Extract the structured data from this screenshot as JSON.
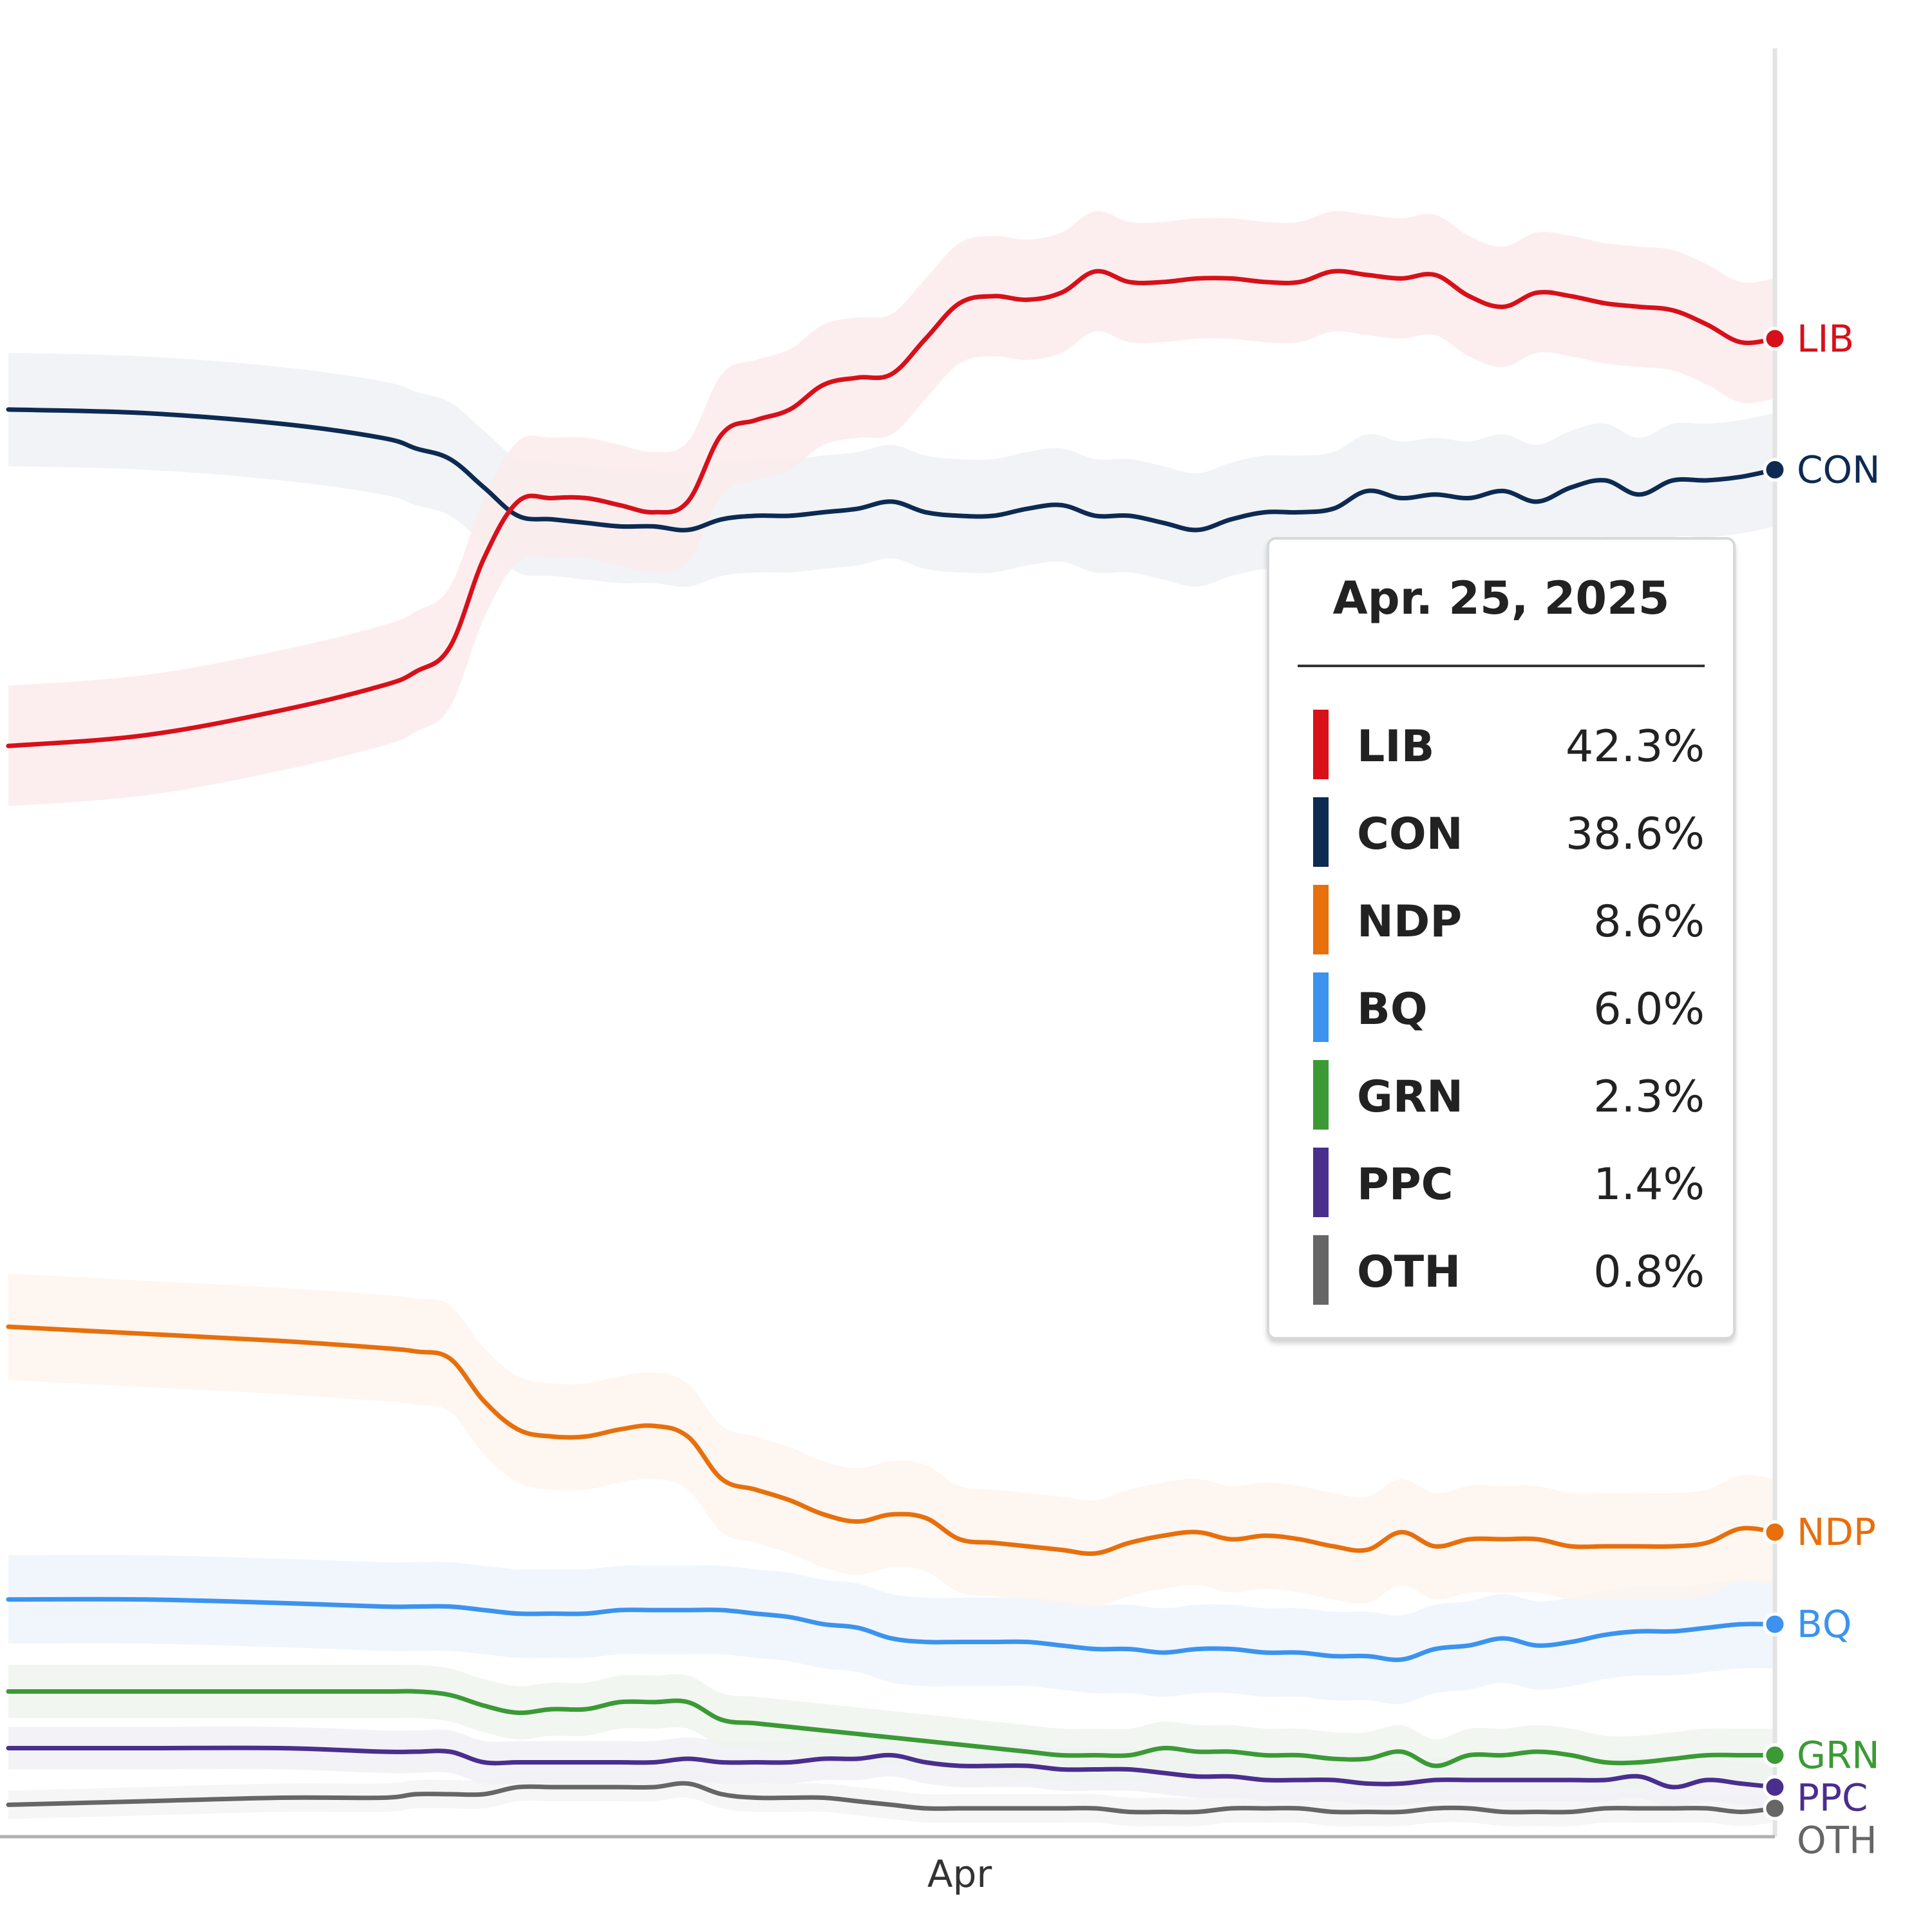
{
  "chart_data": {
    "type": "line",
    "title": "",
    "xlabel": "",
    "ylabel": "",
    "ylim": [
      0,
      50.5
    ],
    "grid": false,
    "legend": "direct labels at right end of lines",
    "x_ticks": [
      {
        "date": "2025-04-01",
        "label": "Apr"
      }
    ],
    "dates": [
      "2025-03-04",
      "2025-03-08",
      "2025-03-12",
      "2025-03-15",
      "2025-03-16",
      "2025-03-17",
      "2025-03-18",
      "2025-03-19",
      "2025-03-20",
      "2025-03-21",
      "2025-03-22",
      "2025-03-23",
      "2025-03-24",
      "2025-03-25",
      "2025-03-26",
      "2025-03-27",
      "2025-03-28",
      "2025-03-29",
      "2025-03-30",
      "2025-03-31",
      "2025-04-01",
      "2025-04-02",
      "2025-04-03",
      "2025-04-04",
      "2025-04-05",
      "2025-04-06",
      "2025-04-07",
      "2025-04-08",
      "2025-04-09",
      "2025-04-10",
      "2025-04-11",
      "2025-04-12",
      "2025-04-13",
      "2025-04-14",
      "2025-04-15",
      "2025-04-16",
      "2025-04-17",
      "2025-04-18",
      "2025-04-19",
      "2025-04-20",
      "2025-04-21",
      "2025-04-22",
      "2025-04-23",
      "2025-04-24",
      "2025-04-25"
    ],
    "series": [
      {
        "name": "LIB",
        "color": "#d7101a",
        "band_color": "#fcebec",
        "band": 1.7,
        "values": [
          30.8,
          31.1,
          31.8,
          32.5,
          32.9,
          33.6,
          36.1,
          37.7,
          37.8,
          37.8,
          37.6,
          37.4,
          37.7,
          39.6,
          40.0,
          40.3,
          41.0,
          41.2,
          41.3,
          42.3,
          43.3,
          43.5,
          43.4,
          43.6,
          44.2,
          43.9,
          43.9,
          44.0,
          44.0,
          43.9,
          43.9,
          44.2,
          44.1,
          44.0,
          44.1,
          43.5,
          43.2,
          43.6,
          43.5,
          43.3,
          43.2,
          43.1,
          42.7,
          42.2,
          42.3
        ]
      },
      {
        "name": "CON",
        "color": "#0d2a52",
        "band_color": "#eff1f4",
        "band": 1.6,
        "values": [
          40.3,
          40.2,
          39.9,
          39.5,
          39.2,
          38.9,
          38.1,
          37.3,
          37.2,
          37.1,
          37.0,
          37.0,
          36.9,
          37.2,
          37.3,
          37.3,
          37.4,
          37.5,
          37.7,
          37.4,
          37.3,
          37.3,
          37.5,
          37.6,
          37.3,
          37.3,
          37.1,
          36.9,
          37.2,
          37.4,
          37.4,
          37.5,
          38.0,
          37.8,
          37.9,
          37.8,
          38.0,
          37.7,
          38.1,
          38.3,
          37.9,
          38.3,
          38.3,
          38.4,
          38.6
        ]
      },
      {
        "name": "NDP",
        "color": "#e76f0c",
        "band_color": "#fdf4ee",
        "band": 1.5,
        "values": [
          14.4,
          14.2,
          14.0,
          13.8,
          13.7,
          13.5,
          12.3,
          11.5,
          11.3,
          11.3,
          11.5,
          11.6,
          11.3,
          10.1,
          9.8,
          9.5,
          9.1,
          8.9,
          9.1,
          9.0,
          8.4,
          8.3,
          8.2,
          8.1,
          8.0,
          8.3,
          8.5,
          8.6,
          8.4,
          8.5,
          8.4,
          8.2,
          8.1,
          8.6,
          8.2,
          8.4,
          8.4,
          8.4,
          8.2,
          8.2,
          8.2,
          8.2,
          8.3,
          8.7,
          8.6
        ]
      },
      {
        "name": "BQ",
        "color": "#3b93ef",
        "band_color": "#eef5fd",
        "band": 1.25,
        "values": [
          6.7,
          6.7,
          6.6,
          6.5,
          6.5,
          6.5,
          6.4,
          6.3,
          6.3,
          6.3,
          6.4,
          6.4,
          6.4,
          6.4,
          6.3,
          6.2,
          6.0,
          5.9,
          5.6,
          5.5,
          5.5,
          5.5,
          5.5,
          5.4,
          5.3,
          5.3,
          5.2,
          5.3,
          5.3,
          5.2,
          5.2,
          5.1,
          5.1,
          5.0,
          5.3,
          5.4,
          5.6,
          5.4,
          5.5,
          5.7,
          5.8,
          5.8,
          5.9,
          6.0,
          6.0
        ]
      },
      {
        "name": "GRN",
        "color": "#3b9a35",
        "band_color": "#eef5ee",
        "band": 0.75,
        "values": [
          4.1,
          4.1,
          4.1,
          4.1,
          4.1,
          4.0,
          3.7,
          3.5,
          3.6,
          3.6,
          3.8,
          3.8,
          3.8,
          3.3,
          3.2,
          3.1,
          3.0,
          2.9,
          2.8,
          2.7,
          2.6,
          2.5,
          2.4,
          2.3,
          2.3,
          2.3,
          2.5,
          2.4,
          2.4,
          2.3,
          2.3,
          2.2,
          2.2,
          2.4,
          2.0,
          2.3,
          2.3,
          2.4,
          2.3,
          2.1,
          2.1,
          2.2,
          2.3,
          2.3,
          2.3
        ]
      },
      {
        "name": "PPC",
        "color": "#4a2e8e",
        "band_color": "#f1f0f5",
        "band": 0.6,
        "values": [
          2.5,
          2.5,
          2.5,
          2.4,
          2.4,
          2.4,
          2.1,
          2.1,
          2.1,
          2.1,
          2.1,
          2.1,
          2.2,
          2.1,
          2.1,
          2.1,
          2.2,
          2.2,
          2.3,
          2.1,
          2.0,
          2.0,
          2.0,
          1.9,
          1.9,
          1.9,
          1.8,
          1.7,
          1.7,
          1.6,
          1.6,
          1.6,
          1.5,
          1.5,
          1.6,
          1.6,
          1.6,
          1.6,
          1.6,
          1.6,
          1.7,
          1.4,
          1.6,
          1.5,
          1.4
        ]
      },
      {
        "name": "OTH",
        "color": "#666666",
        "band_color": "#f4f4f4",
        "band": 0.4,
        "values": [
          0.9,
          1.0,
          1.1,
          1.1,
          1.2,
          1.2,
          1.2,
          1.4,
          1.4,
          1.4,
          1.4,
          1.4,
          1.5,
          1.2,
          1.1,
          1.1,
          1.1,
          1.0,
          0.9,
          0.8,
          0.8,
          0.8,
          0.8,
          0.8,
          0.8,
          0.7,
          0.7,
          0.7,
          0.8,
          0.8,
          0.8,
          0.7,
          0.7,
          0.7,
          0.8,
          0.8,
          0.7,
          0.7,
          0.7,
          0.8,
          0.8,
          0.8,
          0.8,
          0.7,
          0.8
        ]
      }
    ],
    "end_labels": [
      "LIB",
      "CON",
      "NDP",
      "BQ",
      "GRN",
      "PPC",
      "OTH"
    ],
    "tooltip": {
      "date": "Apr. 25, 2025",
      "rows": [
        {
          "party": "LIB",
          "value": "42.3%",
          "color": "#d7101a"
        },
        {
          "party": "CON",
          "value": "38.6%",
          "color": "#0d2a52"
        },
        {
          "party": "NDP",
          "value": "8.6%",
          "color": "#e76f0c"
        },
        {
          "party": "BQ",
          "value": "6.0%",
          "color": "#3b93ef"
        },
        {
          "party": "GRN",
          "value": "2.3%",
          "color": "#3b9a35"
        },
        {
          "party": "PPC",
          "value": "1.4%",
          "color": "#4a2e8e"
        },
        {
          "party": "OTH",
          "value": "0.8%",
          "color": "#666666"
        }
      ]
    }
  }
}
